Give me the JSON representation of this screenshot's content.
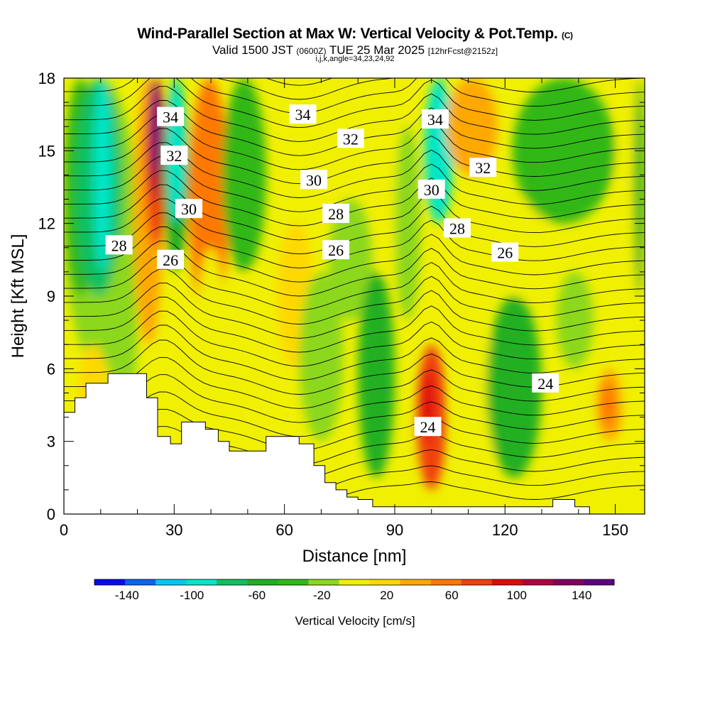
{
  "title": {
    "main": "Wind-Parallel Section at Max W: Vertical Velocity & Pot.Temp.",
    "copyright": "(C)",
    "valid": "Valid 1500 JST",
    "utc": "(0600Z)",
    "date": "TUE 25 Mar 2025",
    "fcst": "[12hrFcst@2152z]",
    "indices": "i,j,k,angle=34,23,24,92"
  },
  "chart_data": {
    "type": "heatmap",
    "xlabel": "Distance [nm]",
    "ylabel": "Height [Kft MSL]",
    "xlim": [
      0,
      158
    ],
    "ylim": [
      0,
      18
    ],
    "xticks": [
      "0",
      "30",
      "60",
      "90",
      "120",
      "150"
    ],
    "yticks": [
      "0",
      "3",
      "6",
      "9",
      "12",
      "15",
      "18"
    ],
    "colorbar": {
      "label": "Vertical Velocity [cm/s]",
      "tick_labels": [
        "-140",
        "-100",
        "-60",
        "-20",
        "20",
        "60",
        "100",
        "140"
      ],
      "levels": [
        -160,
        -140,
        -120,
        -100,
        -80,
        -60,
        -40,
        -20,
        0,
        20,
        40,
        60,
        80,
        100,
        120,
        140,
        160
      ],
      "colors": [
        "#0a0af0",
        "#0a64f0",
        "#00c8f0",
        "#00e6c8",
        "#10c060",
        "#20b020",
        "#30b818",
        "#8cd81c",
        "#f0f000",
        "#ffd800",
        "#ffa800",
        "#ff7800",
        "#f04010",
        "#e00a0a",
        "#b00040",
        "#800060",
        "#600080"
      ]
    },
    "theta_contour_labels": [
      {
        "value": "34",
        "x": 29,
        "y": 16.4
      },
      {
        "value": "32",
        "x": 30,
        "y": 14.8
      },
      {
        "value": "30",
        "x": 34,
        "y": 12.6
      },
      {
        "value": "28",
        "x": 15,
        "y": 11.1
      },
      {
        "value": "26",
        "x": 29,
        "y": 10.5
      },
      {
        "value": "34",
        "x": 65,
        "y": 16.5
      },
      {
        "value": "32",
        "x": 78,
        "y": 15.5
      },
      {
        "value": "30",
        "x": 68,
        "y": 13.8
      },
      {
        "value": "28",
        "x": 74,
        "y": 12.4
      },
      {
        "value": "26",
        "x": 74,
        "y": 10.9
      },
      {
        "value": "34",
        "x": 101,
        "y": 16.3
      },
      {
        "value": "30",
        "x": 100,
        "y": 13.4
      },
      {
        "value": "32",
        "x": 114,
        "y": 14.3
      },
      {
        "value": "28",
        "x": 107,
        "y": 11.8
      },
      {
        "value": "26",
        "x": 120,
        "y": 10.8
      },
      {
        "value": "24",
        "x": 99,
        "y": 3.6
      },
      {
        "value": "24",
        "x": 131,
        "y": 5.4
      }
    ],
    "terrain": [
      [
        0,
        4.2
      ],
      [
        3,
        4.2
      ],
      [
        3,
        4.8
      ],
      [
        6,
        4.8
      ],
      [
        6,
        5.4
      ],
      [
        12,
        5.4
      ],
      [
        12,
        5.8
      ],
      [
        22.5,
        5.8
      ],
      [
        22.5,
        4.8
      ],
      [
        25.5,
        4.8
      ],
      [
        25.5,
        3.2
      ],
      [
        29,
        3.2
      ],
      [
        29,
        2.9
      ],
      [
        32,
        2.9
      ],
      [
        32,
        3.8
      ],
      [
        38.5,
        3.8
      ],
      [
        38.5,
        3.5
      ],
      [
        42,
        3.5
      ],
      [
        42,
        3.0
      ],
      [
        45,
        3.0
      ],
      [
        45,
        2.6
      ],
      [
        55,
        2.6
      ],
      [
        55,
        3.2
      ],
      [
        64,
        3.2
      ],
      [
        64,
        2.9
      ],
      [
        68,
        2.9
      ],
      [
        68,
        2.0
      ],
      [
        71,
        2.0
      ],
      [
        71,
        1.3
      ],
      [
        74,
        1.3
      ],
      [
        74,
        1.0
      ],
      [
        77,
        1.0
      ],
      [
        77,
        0.7
      ],
      [
        80,
        0.7
      ],
      [
        80,
        0.6
      ],
      [
        84,
        0.6
      ],
      [
        84,
        0.3
      ],
      [
        133,
        0.3
      ],
      [
        133,
        0.6
      ],
      [
        139,
        0.6
      ],
      [
        139,
        0.3
      ],
      [
        143,
        0.3
      ],
      [
        143,
        0
      ]
    ]
  }
}
